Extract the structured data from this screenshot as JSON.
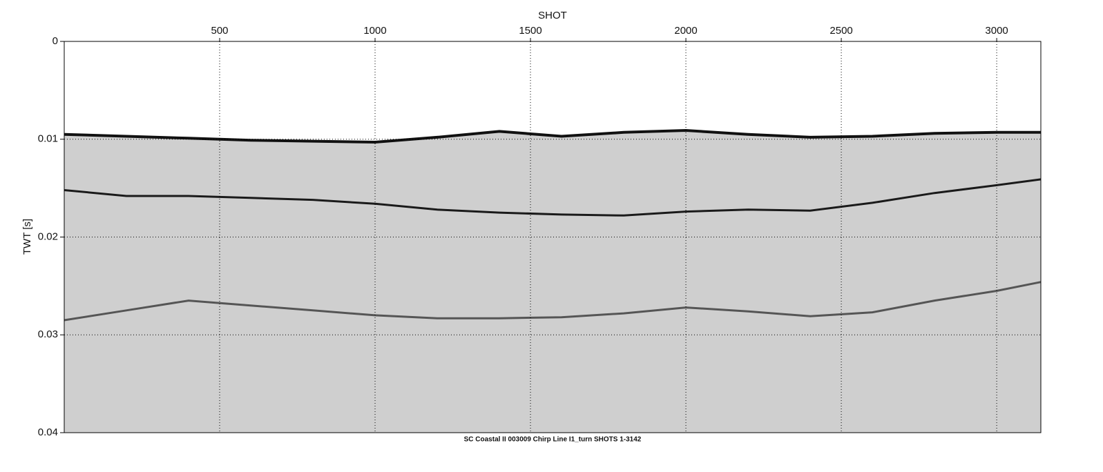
{
  "chart_data": {
    "type": "seismic",
    "title": "SHOT",
    "y_label": "TWT [s]",
    "caption": "SC Coastal II 003009 Chirp Line I1_turn SHOTS 1-3142",
    "xlim": [
      0,
      3142
    ],
    "xticks": [
      500,
      1000,
      1500,
      2000,
      2500,
      3000
    ],
    "ylim": [
      0,
      0.04
    ],
    "yticks": [
      0,
      0.01,
      0.02,
      0.03,
      0.04
    ],
    "y_inverted": true,
    "grid": true,
    "x": [
      0,
      200,
      400,
      600,
      800,
      1000,
      1200,
      1400,
      1600,
      1800,
      2000,
      2200,
      2400,
      2600,
      2800,
      3000,
      3142
    ],
    "series": [
      {
        "color": "#111111",
        "values": [
          0.0095,
          0.0097,
          0.0099,
          0.0101,
          0.0102,
          0.0103,
          0.0098,
          0.0092,
          0.0097,
          0.0093,
          0.0091,
          0.0095,
          0.0098,
          0.0097,
          0.0094,
          0.0093,
          0.0093
        ]
      },
      {
        "color": "#1a1a1a",
        "values": [
          0.0152,
          0.0158,
          0.0158,
          0.016,
          0.0162,
          0.0166,
          0.0172,
          0.0175,
          0.0177,
          0.0178,
          0.0174,
          0.0172,
          0.0173,
          0.0165,
          0.0155,
          0.0147,
          0.0141
        ]
      },
      {
        "color": "#555555",
        "values": [
          0.0285,
          0.0275,
          0.0265,
          0.027,
          0.0275,
          0.028,
          0.0283,
          0.0283,
          0.0282,
          0.0278,
          0.0272,
          0.0276,
          0.0281,
          0.0277,
          0.0265,
          0.0255,
          0.0246
        ]
      }
    ]
  }
}
